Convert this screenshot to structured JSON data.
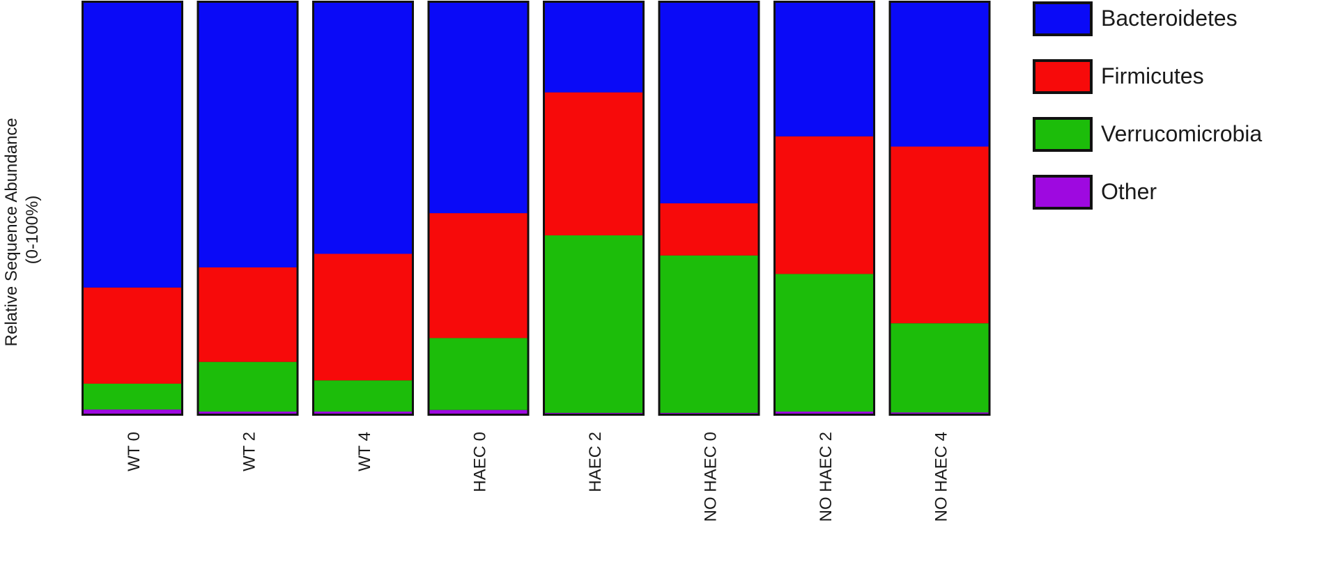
{
  "chart_data": {
    "type": "bar",
    "stacked": true,
    "normalized": true,
    "ylabel_line1": "Relative Sequence Abundance",
    "ylabel_line2": "(0-100%)",
    "ylim": [
      0,
      100
    ],
    "grid": false,
    "legend_position": "right",
    "categories": [
      "WT 0",
      "WT 2",
      "WT 4",
      "HAEC 0",
      "HAEC 2",
      "NO HAEC 0",
      "NO HAEC 2",
      "NO HAEC 4"
    ],
    "series": [
      {
        "name": "Other",
        "color": "#9e09e0",
        "values": [
          1.0,
          0.5,
          0.5,
          0.9,
          0.2,
          0.2,
          0.5,
          0.3
        ]
      },
      {
        "name": "Verrucomicrobia",
        "color": "#1cbd0a",
        "values": [
          6.3,
          12.1,
          7.6,
          17.5,
          43.2,
          38.3,
          33.5,
          21.7
        ]
      },
      {
        "name": "Firmicutes",
        "color": "#f70a0a",
        "values": [
          23.4,
          23.0,
          30.8,
          30.4,
          34.8,
          12.7,
          33.5,
          43.0
        ]
      },
      {
        "name": "Bacteroidetes",
        "color": "#0a0af7",
        "values": [
          69.3,
          64.4,
          61.1,
          51.2,
          21.8,
          48.8,
          32.5,
          35.0
        ]
      }
    ],
    "legend_order": [
      "Bacteroidetes",
      "Firmicutes",
      "Verrucomicrobia",
      "Other"
    ]
  }
}
